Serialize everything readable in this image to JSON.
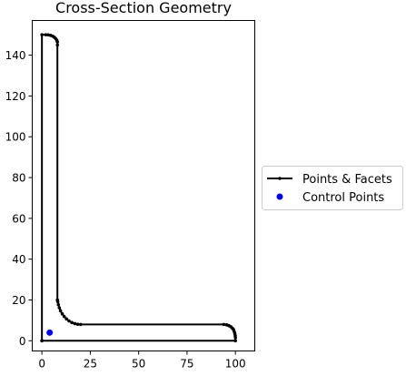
{
  "chart_data": {
    "type": "line",
    "title": "Cross-Section Geometry",
    "xlabel": "",
    "ylabel": "",
    "xlim": [
      -5,
      110
    ],
    "ylim": [
      -5,
      157
    ],
    "x_ticks": [
      0,
      25,
      50,
      75,
      100
    ],
    "y_ticks": [
      0,
      20,
      40,
      60,
      80,
      100,
      120,
      140
    ],
    "grid": false,
    "legend_position": "right, outside plot",
    "series": [
      {
        "name": "Points & Facets",
        "color": "#000000",
        "marker": "small dot",
        "points": [
          [
            0,
            0
          ],
          [
            100,
            0
          ],
          [
            100,
            1.5
          ],
          [
            99.9,
            2.5
          ],
          [
            99.7,
            3.5
          ],
          [
            99.4,
            4.5
          ],
          [
            99.0,
            5.5
          ],
          [
            98.4,
            6.2
          ],
          [
            97.6,
            6.9
          ],
          [
            96.6,
            7.4
          ],
          [
            95.5,
            7.8
          ],
          [
            94,
            8
          ],
          [
            20,
            8
          ],
          [
            18.5,
            8.1
          ],
          [
            17,
            8.4
          ],
          [
            15.5,
            8.9
          ],
          [
            14,
            9.7
          ],
          [
            12.7,
            10.7
          ],
          [
            11.5,
            11.9
          ],
          [
            10.5,
            13.2
          ],
          [
            9.6,
            14.7
          ],
          [
            9.0,
            16.2
          ],
          [
            8.5,
            17.7
          ],
          [
            8.2,
            19.2
          ],
          [
            8,
            20
          ],
          [
            8,
            145
          ],
          [
            8,
            146.5
          ],
          [
            7.7,
            147.3
          ],
          [
            7.2,
            148
          ],
          [
            6.5,
            148.7
          ],
          [
            5.6,
            149.3
          ],
          [
            4.5,
            149.7
          ],
          [
            3.2,
            149.95
          ],
          [
            2,
            150
          ],
          [
            0,
            150
          ],
          [
            0,
            0
          ]
        ]
      },
      {
        "name": "Control Points",
        "color": "#0000ff",
        "marker": "filled circle",
        "points": [
          [
            4,
            4
          ]
        ]
      }
    ]
  }
}
